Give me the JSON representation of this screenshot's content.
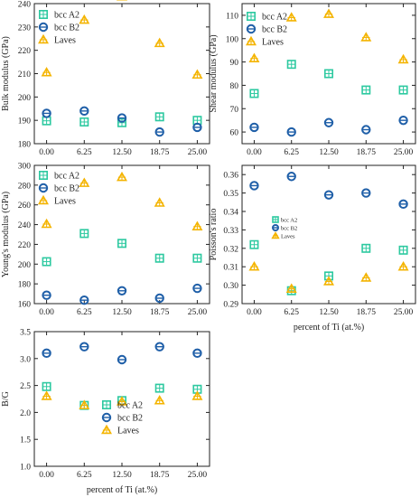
{
  "colors": {
    "a2": "#2dc9a0",
    "b2": "#1f5fa8",
    "laves": "#f4b400",
    "axis": "#222222"
  },
  "chart_data": [
    {
      "type": "scatter",
      "ylabel": "Bulk modulus (GPa)",
      "xlabel": "",
      "categories": [
        "0.00",
        "6.25",
        "12.50",
        "18.75",
        "25.00"
      ],
      "ylim": [
        180,
        240
      ],
      "yticks": [
        180,
        190,
        200,
        210,
        220,
        230,
        240
      ],
      "legend": "top-left",
      "series": [
        {
          "name": "bcc A2",
          "key": "a2",
          "values": [
            189.8,
            189.3,
            189.0,
            191.5,
            190.0
          ]
        },
        {
          "name": "bcc B2",
          "key": "b2",
          "values": [
            193.0,
            194.0,
            191.0,
            185.0,
            187.0
          ]
        },
        {
          "name": "Laves",
          "key": "laves",
          "values": [
            210.5,
            233.0,
            243.0,
            223.0,
            209.5
          ]
        }
      ]
    },
    {
      "type": "scatter",
      "ylabel": "Shear modulus (GPa)",
      "xlabel": "",
      "categories": [
        "0.00",
        "6.25",
        "12.50",
        "18.75",
        "25.00"
      ],
      "ylim": [
        55,
        115
      ],
      "yticks": [
        60,
        70,
        80,
        90,
        100,
        110
      ],
      "legend": "top-left",
      "series": [
        {
          "name": "bcc A2",
          "key": "a2",
          "values": [
            76.5,
            89.0,
            85.0,
            78.0,
            78.0
          ]
        },
        {
          "name": "bcc B2",
          "key": "b2",
          "values": [
            62.0,
            60.0,
            64.0,
            61.0,
            65.0
          ]
        },
        {
          "name": "Laves",
          "key": "laves",
          "values": [
            91.5,
            109.0,
            110.5,
            100.5,
            91.0
          ]
        }
      ]
    },
    {
      "type": "scatter",
      "ylabel": "Young's modulus (GPa)",
      "xlabel": "",
      "categories": [
        "0.00",
        "6.25",
        "12.50",
        "18.75",
        "25.00"
      ],
      "ylim": [
        160,
        300
      ],
      "yticks": [
        160,
        180,
        200,
        220,
        240,
        260,
        280,
        300
      ],
      "legend": "top-left",
      "series": [
        {
          "name": "bcc A2",
          "key": "a2",
          "values": [
            202.5,
            231.0,
            221.0,
            206.0,
            206.0
          ]
        },
        {
          "name": "bcc B2",
          "key": "b2",
          "values": [
            168.5,
            163.5,
            173.0,
            165.5,
            175.5
          ]
        },
        {
          "name": "Laves",
          "key": "laves",
          "values": [
            240.5,
            282.0,
            288.0,
            262.0,
            238.0
          ]
        }
      ]
    },
    {
      "type": "scatter",
      "ylabel": "Poisson's ratio",
      "xlabel": "percent of  Ti (at.%)",
      "categories": [
        "0.00",
        "6.25",
        "12.50",
        "18.75",
        "25.00"
      ],
      "ylim": [
        0.29,
        0.365
      ],
      "yticks": [
        0.29,
        0.3,
        0.31,
        0.32,
        0.33,
        0.34,
        0.35,
        0.36
      ],
      "ytick_labels": [
        "0.29",
        "0.30",
        "0.31",
        "0.32",
        "0.33",
        "0.34",
        "0.35",
        "0.36"
      ],
      "legend": "middle-left",
      "series": [
        {
          "name": "bcc A2",
          "key": "a2",
          "values": [
            0.322,
            0.297,
            0.305,
            0.32,
            0.319
          ]
        },
        {
          "name": "bcc B2",
          "key": "b2",
          "values": [
            0.354,
            0.359,
            0.349,
            0.35,
            0.344
          ]
        },
        {
          "name": "Laves",
          "key": "laves",
          "values": [
            0.31,
            0.298,
            0.302,
            0.304,
            0.31
          ]
        }
      ]
    },
    {
      "type": "scatter",
      "ylabel": "B/G",
      "xlabel": "percent of  Ti (at.%)",
      "categories": [
        "0.00",
        "6.25",
        "12.50",
        "18.75",
        "25.00"
      ],
      "ylim": [
        1.0,
        3.5
      ],
      "yticks": [
        1.0,
        1.5,
        2.0,
        2.5,
        3.0,
        3.5
      ],
      "ytick_labels": [
        "1.0",
        "1.5",
        "2.0",
        "2.5",
        "3.0",
        "3.5"
      ],
      "legend": "lower-middle",
      "series": [
        {
          "name": "bcc A2",
          "key": "a2",
          "values": [
            2.48,
            2.13,
            2.22,
            2.45,
            2.43
          ]
        },
        {
          "name": "bcc B2",
          "key": "b2",
          "values": [
            3.1,
            3.22,
            2.98,
            3.22,
            3.1
          ]
        },
        {
          "name": "Laves",
          "key": "laves",
          "values": [
            2.3,
            2.13,
            2.2,
            2.22,
            2.3
          ]
        }
      ]
    }
  ]
}
